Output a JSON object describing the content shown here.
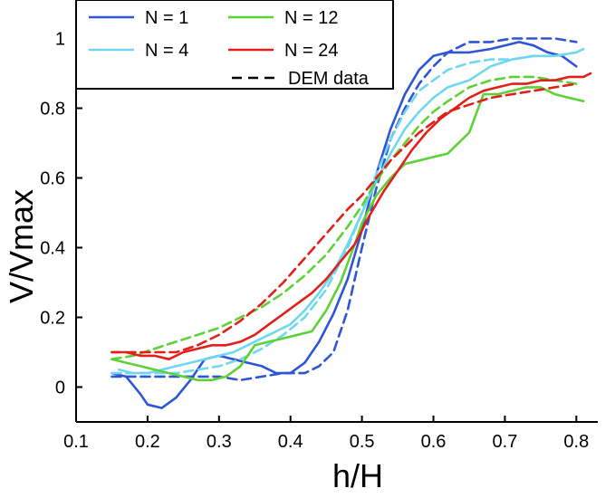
{
  "chart_data": {
    "type": "line",
    "title": "",
    "xlabel": "h/H",
    "ylabel": "V/Vmax",
    "xlim": [
      0.1,
      0.83
    ],
    "ylim": [
      -0.1,
      1.1
    ],
    "grid": false,
    "x_ticks": [
      "0.1",
      "0.2",
      "0.3",
      "0.4",
      "0.5",
      "0.6",
      "0.7",
      "0.8"
    ],
    "y_ticks": [
      "0",
      "0.2",
      "0.4",
      "0.6",
      "0.8",
      "1"
    ],
    "legend_position": "top-left",
    "legend": [
      {
        "label": "N  =  1",
        "color": "#2f55d4",
        "style": "solid"
      },
      {
        "label": "N  =  4",
        "color": "#6fd7f0",
        "style": "solid"
      },
      {
        "label": "N  =  12",
        "color": "#5fd136",
        "style": "solid"
      },
      {
        "label": "N  =  24",
        "color": "#e0201b",
        "style": "solid"
      },
      {
        "label": "DEM data",
        "color": "#000000",
        "style": "dashed"
      }
    ],
    "series": [
      {
        "name": "N = 1",
        "color": "#2f55d4",
        "style": "solid",
        "points": [
          [
            0.15,
            0.04
          ],
          [
            0.17,
            0.03
          ],
          [
            0.19,
            -0.02
          ],
          [
            0.2,
            -0.05
          ],
          [
            0.22,
            -0.06
          ],
          [
            0.24,
            -0.03
          ],
          [
            0.26,
            0.02
          ],
          [
            0.28,
            0.08
          ],
          [
            0.3,
            0.09
          ],
          [
            0.32,
            0.08
          ],
          [
            0.34,
            0.07
          ],
          [
            0.36,
            0.06
          ],
          [
            0.38,
            0.04
          ],
          [
            0.4,
            0.04
          ],
          [
            0.42,
            0.07
          ],
          [
            0.44,
            0.13
          ],
          [
            0.46,
            0.21
          ],
          [
            0.48,
            0.31
          ],
          [
            0.5,
            0.45
          ],
          [
            0.52,
            0.61
          ],
          [
            0.54,
            0.74
          ],
          [
            0.56,
            0.84
          ],
          [
            0.58,
            0.91
          ],
          [
            0.6,
            0.95
          ],
          [
            0.62,
            0.96
          ],
          [
            0.65,
            0.96
          ],
          [
            0.68,
            0.97
          ],
          [
            0.7,
            0.98
          ],
          [
            0.72,
            0.99
          ],
          [
            0.74,
            0.98
          ],
          [
            0.76,
            0.96
          ],
          [
            0.78,
            0.95
          ],
          [
            0.8,
            0.92
          ]
        ]
      },
      {
        "name": "N = 1 DEM",
        "color": "#2f55d4",
        "style": "dashed",
        "points": [
          [
            0.15,
            0.03
          ],
          [
            0.18,
            0.03
          ],
          [
            0.21,
            0.03
          ],
          [
            0.24,
            0.03
          ],
          [
            0.27,
            0.03
          ],
          [
            0.3,
            0.03
          ],
          [
            0.33,
            0.02
          ],
          [
            0.36,
            0.03
          ],
          [
            0.39,
            0.04
          ],
          [
            0.42,
            0.04
          ],
          [
            0.44,
            0.06
          ],
          [
            0.46,
            0.1
          ],
          [
            0.48,
            0.22
          ],
          [
            0.5,
            0.4
          ],
          [
            0.52,
            0.57
          ],
          [
            0.54,
            0.71
          ],
          [
            0.56,
            0.8
          ],
          [
            0.58,
            0.87
          ],
          [
            0.6,
            0.92
          ],
          [
            0.62,
            0.96
          ],
          [
            0.65,
            0.99
          ],
          [
            0.68,
            0.99
          ],
          [
            0.71,
            1.0
          ],
          [
            0.74,
            1.0
          ],
          [
            0.77,
            1.0
          ],
          [
            0.8,
            0.99
          ]
        ]
      },
      {
        "name": "N = 4",
        "color": "#6fd7f0",
        "style": "solid",
        "points": [
          [
            0.16,
            0.05
          ],
          [
            0.18,
            0.04
          ],
          [
            0.2,
            0.04
          ],
          [
            0.22,
            0.05
          ],
          [
            0.24,
            0.06
          ],
          [
            0.26,
            0.07
          ],
          [
            0.28,
            0.08
          ],
          [
            0.3,
            0.09
          ],
          [
            0.32,
            0.1
          ],
          [
            0.34,
            0.12
          ],
          [
            0.36,
            0.14
          ],
          [
            0.38,
            0.16
          ],
          [
            0.4,
            0.18
          ],
          [
            0.42,
            0.22
          ],
          [
            0.44,
            0.27
          ],
          [
            0.46,
            0.33
          ],
          [
            0.48,
            0.41
          ],
          [
            0.5,
            0.5
          ],
          [
            0.52,
            0.59
          ],
          [
            0.54,
            0.67
          ],
          [
            0.56,
            0.74
          ],
          [
            0.58,
            0.79
          ],
          [
            0.6,
            0.83
          ],
          [
            0.62,
            0.86
          ],
          [
            0.65,
            0.88
          ],
          [
            0.68,
            0.92
          ],
          [
            0.71,
            0.94
          ],
          [
            0.74,
            0.95
          ],
          [
            0.77,
            0.95
          ],
          [
            0.8,
            0.96
          ],
          [
            0.81,
            0.97
          ]
        ]
      },
      {
        "name": "N = 4 DEM",
        "color": "#6fd7f0",
        "style": "dashed",
        "points": [
          [
            0.15,
            0.04
          ],
          [
            0.18,
            0.04
          ],
          [
            0.21,
            0.04
          ],
          [
            0.24,
            0.04
          ],
          [
            0.27,
            0.05
          ],
          [
            0.3,
            0.06
          ],
          [
            0.33,
            0.08
          ],
          [
            0.36,
            0.11
          ],
          [
            0.39,
            0.15
          ],
          [
            0.42,
            0.2
          ],
          [
            0.45,
            0.28
          ],
          [
            0.48,
            0.4
          ],
          [
            0.5,
            0.5
          ],
          [
            0.52,
            0.61
          ],
          [
            0.54,
            0.71
          ],
          [
            0.56,
            0.79
          ],
          [
            0.58,
            0.85
          ],
          [
            0.6,
            0.88
          ],
          [
            0.62,
            0.91
          ],
          [
            0.65,
            0.93
          ],
          [
            0.68,
            0.94
          ],
          [
            0.71,
            0.94
          ],
          [
            0.74,
            0.95
          ],
          [
            0.77,
            0.95
          ],
          [
            0.8,
            0.96
          ]
        ]
      },
      {
        "name": "N = 12",
        "color": "#5fd136",
        "style": "solid",
        "points": [
          [
            0.15,
            0.08
          ],
          [
            0.17,
            0.07
          ],
          [
            0.19,
            0.06
          ],
          [
            0.21,
            0.05
          ],
          [
            0.23,
            0.04
          ],
          [
            0.25,
            0.03
          ],
          [
            0.27,
            0.02
          ],
          [
            0.29,
            0.02
          ],
          [
            0.31,
            0.03
          ],
          [
            0.33,
            0.06
          ],
          [
            0.35,
            0.12
          ],
          [
            0.37,
            0.13
          ],
          [
            0.39,
            0.14
          ],
          [
            0.41,
            0.15
          ],
          [
            0.43,
            0.16
          ],
          [
            0.45,
            0.22
          ],
          [
            0.47,
            0.3
          ],
          [
            0.49,
            0.41
          ],
          [
            0.5,
            0.47
          ],
          [
            0.52,
            0.55
          ],
          [
            0.54,
            0.6
          ],
          [
            0.56,
            0.64
          ],
          [
            0.58,
            0.65
          ],
          [
            0.6,
            0.66
          ],
          [
            0.62,
            0.67
          ],
          [
            0.65,
            0.73
          ],
          [
            0.67,
            0.84
          ],
          [
            0.69,
            0.84
          ],
          [
            0.71,
            0.85
          ],
          [
            0.73,
            0.86
          ],
          [
            0.75,
            0.86
          ],
          [
            0.77,
            0.84
          ],
          [
            0.79,
            0.83
          ],
          [
            0.81,
            0.82
          ]
        ]
      },
      {
        "name": "N = 12 DEM",
        "color": "#5fd136",
        "style": "dashed",
        "points": [
          [
            0.15,
            0.08
          ],
          [
            0.18,
            0.09
          ],
          [
            0.21,
            0.11
          ],
          [
            0.24,
            0.13
          ],
          [
            0.27,
            0.15
          ],
          [
            0.3,
            0.17
          ],
          [
            0.33,
            0.2
          ],
          [
            0.36,
            0.23
          ],
          [
            0.39,
            0.27
          ],
          [
            0.42,
            0.32
          ],
          [
            0.45,
            0.38
          ],
          [
            0.48,
            0.46
          ],
          [
            0.5,
            0.52
          ],
          [
            0.52,
            0.59
          ],
          [
            0.54,
            0.65
          ],
          [
            0.56,
            0.7
          ],
          [
            0.58,
            0.75
          ],
          [
            0.6,
            0.79
          ],
          [
            0.62,
            0.82
          ],
          [
            0.65,
            0.86
          ],
          [
            0.68,
            0.88
          ],
          [
            0.71,
            0.89
          ],
          [
            0.74,
            0.89
          ],
          [
            0.77,
            0.88
          ],
          [
            0.8,
            0.87
          ]
        ]
      },
      {
        "name": "N = 24",
        "color": "#e0201b",
        "style": "solid",
        "points": [
          [
            0.15,
            0.1
          ],
          [
            0.17,
            0.1
          ],
          [
            0.19,
            0.09
          ],
          [
            0.21,
            0.09
          ],
          [
            0.23,
            0.08
          ],
          [
            0.25,
            0.1
          ],
          [
            0.27,
            0.11
          ],
          [
            0.29,
            0.12
          ],
          [
            0.31,
            0.12
          ],
          [
            0.33,
            0.13
          ],
          [
            0.35,
            0.15
          ],
          [
            0.37,
            0.18
          ],
          [
            0.39,
            0.21
          ],
          [
            0.41,
            0.24
          ],
          [
            0.43,
            0.27
          ],
          [
            0.45,
            0.31
          ],
          [
            0.47,
            0.36
          ],
          [
            0.49,
            0.41
          ],
          [
            0.51,
            0.49
          ],
          [
            0.53,
            0.56
          ],
          [
            0.55,
            0.62
          ],
          [
            0.57,
            0.68
          ],
          [
            0.59,
            0.73
          ],
          [
            0.61,
            0.77
          ],
          [
            0.63,
            0.8
          ],
          [
            0.65,
            0.83
          ],
          [
            0.67,
            0.85
          ],
          [
            0.69,
            0.86
          ],
          [
            0.71,
            0.87
          ],
          [
            0.73,
            0.87
          ],
          [
            0.75,
            0.88
          ],
          [
            0.77,
            0.88
          ],
          [
            0.79,
            0.89
          ],
          [
            0.81,
            0.89
          ],
          [
            0.82,
            0.9
          ]
        ]
      },
      {
        "name": "N = 24 DEM",
        "color": "#e0201b",
        "style": "dashed",
        "points": [
          [
            0.15,
            0.1
          ],
          [
            0.18,
            0.1
          ],
          [
            0.21,
            0.1
          ],
          [
            0.24,
            0.1
          ],
          [
            0.27,
            0.12
          ],
          [
            0.3,
            0.15
          ],
          [
            0.33,
            0.19
          ],
          [
            0.36,
            0.24
          ],
          [
            0.39,
            0.3
          ],
          [
            0.42,
            0.37
          ],
          [
            0.45,
            0.44
          ],
          [
            0.48,
            0.51
          ],
          [
            0.5,
            0.55
          ],
          [
            0.52,
            0.6
          ],
          [
            0.54,
            0.65
          ],
          [
            0.56,
            0.69
          ],
          [
            0.58,
            0.73
          ],
          [
            0.6,
            0.76
          ],
          [
            0.62,
            0.79
          ],
          [
            0.65,
            0.81
          ],
          [
            0.68,
            0.83
          ],
          [
            0.71,
            0.84
          ],
          [
            0.74,
            0.85
          ],
          [
            0.77,
            0.86
          ],
          [
            0.8,
            0.87
          ]
        ]
      }
    ]
  }
}
